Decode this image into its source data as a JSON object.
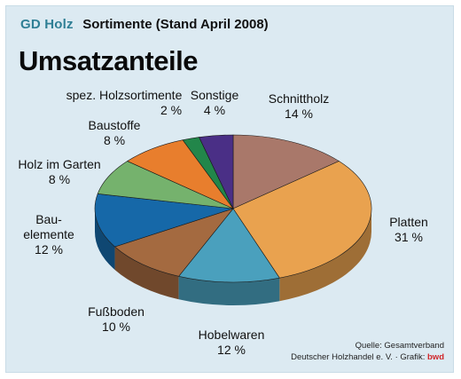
{
  "header": {
    "brand": "GD Holz",
    "subtitle": "Sortimente (Stand April 2008)",
    "title": "Umsatzanteile"
  },
  "source": {
    "line1": "Quelle: Gesamtverband",
    "line2": "Deutscher Holzhandel e. V. · Grafik: ",
    "brand": "bwd"
  },
  "chart_data": {
    "type": "pie",
    "style": "3d",
    "title": "Umsatzanteile",
    "categories": [
      "Schnittholz",
      "Platten",
      "Hobelwaren",
      "Fußboden",
      "Bauelemente",
      "Holz im Garten",
      "Baustoffe",
      "spez. Holzsortimente",
      "Sonstige"
    ],
    "values": [
      14,
      31,
      12,
      10,
      12,
      8,
      8,
      2,
      4
    ],
    "unit": "%",
    "colors": [
      "#a9786a",
      "#e9a24f",
      "#4aa0bd",
      "#a46a40",
      "#1668a8",
      "#75b26d",
      "#e87e2d",
      "#22864a",
      "#4a2f86"
    ],
    "labels": [
      {
        "lines": [
          "Schnittholz"
        ],
        "value": "14 %"
      },
      {
        "lines": [
          "Platten"
        ],
        "value": "31 %"
      },
      {
        "lines": [
          "Hobelwaren"
        ],
        "value": "12 %"
      },
      {
        "lines": [
          "Fußboden"
        ],
        "value": "10 %"
      },
      {
        "lines": [
          "Bau-",
          "elemente"
        ],
        "value": "12 %"
      },
      {
        "lines": [
          "Holz im Garten"
        ],
        "value": "8 %"
      },
      {
        "lines": [
          "Baustoffe"
        ],
        "value": "8 %"
      },
      {
        "lines": [
          "spez. Holzsortimente"
        ],
        "value": "2 %"
      },
      {
        "lines": [
          "Sonstige"
        ],
        "value": "4 %"
      }
    ]
  }
}
